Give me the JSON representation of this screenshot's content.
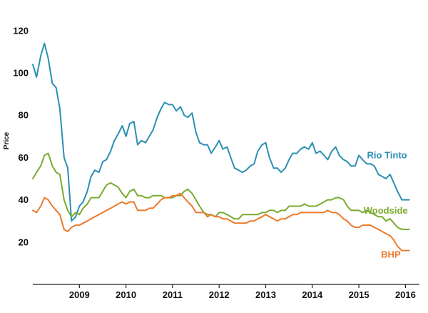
{
  "chart_data": {
    "type": "line",
    "ylabel": "Price",
    "xlabel": "",
    "ylim": [
      0,
      125
    ],
    "xlim": [
      2008.0,
      2016.3
    ],
    "yticks": [
      20,
      40,
      60,
      80,
      100,
      120
    ],
    "xticks": [
      {
        "value": 2009,
        "label": "2009"
      },
      {
        "value": 2010,
        "label": "2010"
      },
      {
        "value": 2011,
        "label": "2011"
      },
      {
        "value": 2012,
        "label": "2012"
      },
      {
        "value": 2013,
        "label": "2013"
      },
      {
        "value": 2014,
        "label": "2014"
      },
      {
        "value": 2015,
        "label": "2015"
      },
      {
        "value": 2016,
        "label": "2016"
      }
    ],
    "grid": false,
    "legend": "inline labels at right",
    "series": [
      {
        "name": "Rio Tinto",
        "color": "#2b8fb3",
        "x": [
          2008.0,
          2008.08,
          2008.17,
          2008.25,
          2008.33,
          2008.42,
          2008.5,
          2008.58,
          2008.67,
          2008.75,
          2008.83,
          2008.92,
          2009.0,
          2009.08,
          2009.17,
          2009.25,
          2009.33,
          2009.42,
          2009.5,
          2009.58,
          2009.67,
          2009.75,
          2009.83,
          2009.92,
          2010.0,
          2010.08,
          2010.17,
          2010.25,
          2010.33,
          2010.42,
          2010.5,
          2010.58,
          2010.67,
          2010.75,
          2010.83,
          2010.92,
          2011.0,
          2011.08,
          2011.17,
          2011.25,
          2011.33,
          2011.42,
          2011.5,
          2011.58,
          2011.67,
          2011.75,
          2011.83,
          2011.92,
          2012.0,
          2012.08,
          2012.17,
          2012.25,
          2012.33,
          2012.42,
          2012.5,
          2012.58,
          2012.67,
          2012.75,
          2012.83,
          2012.92,
          2013.0,
          2013.08,
          2013.17,
          2013.25,
          2013.33,
          2013.42,
          2013.5,
          2013.58,
          2013.67,
          2013.75,
          2013.83,
          2013.92,
          2014.0,
          2014.08,
          2014.17,
          2014.25,
          2014.33,
          2014.42,
          2014.5,
          2014.58,
          2014.67,
          2014.75,
          2014.83,
          2014.92,
          2015.0,
          2015.08,
          2015.17,
          2015.25,
          2015.33,
          2015.42,
          2015.5,
          2015.58,
          2015.67,
          2015.75,
          2015.83,
          2015.92,
          2016.0,
          2016.08
        ],
        "values": [
          104,
          98,
          108,
          114,
          107,
          95,
          93,
          83,
          60,
          55,
          30,
          32,
          37,
          39,
          44,
          51,
          54,
          53,
          58,
          59,
          63,
          68,
          71,
          75,
          70,
          76,
          77,
          66,
          68,
          67,
          70,
          73,
          79,
          83,
          86,
          85,
          85,
          82,
          84,
          80,
          79,
          81,
          72,
          67,
          66,
          66,
          62,
          65,
          68,
          64,
          65,
          60,
          55,
          54,
          53,
          54,
          56,
          57,
          63,
          66,
          67,
          60,
          55,
          55,
          53,
          55,
          59,
          62,
          62,
          64,
          65,
          64,
          67,
          62,
          63,
          61,
          59,
          63,
          65,
          61,
          59,
          58,
          56,
          56,
          61,
          59,
          57,
          57,
          56,
          52,
          51,
          50,
          52,
          48,
          44,
          40,
          40,
          40
        ]
      },
      {
        "name": "Woodside",
        "color": "#7aab2f",
        "x": [
          2008.0,
          2008.08,
          2008.17,
          2008.25,
          2008.33,
          2008.42,
          2008.5,
          2008.58,
          2008.67,
          2008.75,
          2008.83,
          2008.92,
          2009.0,
          2009.08,
          2009.17,
          2009.25,
          2009.33,
          2009.42,
          2009.5,
          2009.58,
          2009.67,
          2009.75,
          2009.83,
          2009.92,
          2010.0,
          2010.08,
          2010.17,
          2010.25,
          2010.33,
          2010.42,
          2010.5,
          2010.58,
          2010.67,
          2010.75,
          2010.83,
          2010.92,
          2011.0,
          2011.08,
          2011.17,
          2011.25,
          2011.33,
          2011.42,
          2011.5,
          2011.58,
          2011.67,
          2011.75,
          2011.83,
          2011.92,
          2012.0,
          2012.08,
          2012.17,
          2012.25,
          2012.33,
          2012.42,
          2012.5,
          2012.58,
          2012.67,
          2012.75,
          2012.83,
          2012.92,
          2013.0,
          2013.08,
          2013.17,
          2013.25,
          2013.33,
          2013.42,
          2013.5,
          2013.58,
          2013.67,
          2013.75,
          2013.83,
          2013.92,
          2014.0,
          2014.08,
          2014.17,
          2014.25,
          2014.33,
          2014.42,
          2014.5,
          2014.58,
          2014.67,
          2014.75,
          2014.83,
          2014.92,
          2015.0,
          2015.08,
          2015.17,
          2015.25,
          2015.33,
          2015.42,
          2015.5,
          2015.58,
          2015.67,
          2015.75,
          2015.83,
          2015.92,
          2016.0,
          2016.08
        ],
        "values": [
          50,
          53,
          56,
          61,
          62,
          56,
          53,
          52,
          40,
          35,
          32,
          34,
          33,
          36,
          38,
          41,
          41,
          41,
          44,
          47,
          48,
          47,
          46,
          43,
          41,
          44,
          45,
          42,
          42,
          41,
          41,
          42,
          42,
          42,
          41,
          41,
          41,
          42,
          42,
          44,
          45,
          43,
          40,
          37,
          34,
          33,
          33,
          32,
          34,
          34,
          33,
          32,
          31,
          31,
          33,
          33,
          33,
          33,
          33,
          34,
          34,
          35,
          35,
          34,
          35,
          35,
          37,
          37,
          37,
          37,
          38,
          37,
          37,
          37,
          38,
          39,
          40,
          40,
          41,
          41,
          40,
          37,
          35,
          35,
          35,
          34,
          35,
          34,
          33,
          32,
          32,
          30,
          31,
          29,
          27,
          26,
          26,
          26
        ]
      },
      {
        "name": "BHP",
        "color": "#ea7a2c",
        "x": [
          2008.0,
          2008.08,
          2008.17,
          2008.25,
          2008.33,
          2008.42,
          2008.5,
          2008.58,
          2008.67,
          2008.75,
          2008.83,
          2008.92,
          2009.0,
          2009.08,
          2009.17,
          2009.25,
          2009.33,
          2009.42,
          2009.5,
          2009.58,
          2009.67,
          2009.75,
          2009.83,
          2009.92,
          2010.0,
          2010.08,
          2010.17,
          2010.25,
          2010.33,
          2010.42,
          2010.5,
          2010.58,
          2010.67,
          2010.75,
          2010.83,
          2010.92,
          2011.0,
          2011.08,
          2011.17,
          2011.25,
          2011.33,
          2011.42,
          2011.5,
          2011.58,
          2011.67,
          2011.75,
          2011.83,
          2011.92,
          2012.0,
          2012.08,
          2012.17,
          2012.25,
          2012.33,
          2012.42,
          2012.5,
          2012.58,
          2012.67,
          2012.75,
          2012.83,
          2012.92,
          2013.0,
          2013.08,
          2013.17,
          2013.25,
          2013.33,
          2013.42,
          2013.5,
          2013.58,
          2013.67,
          2013.75,
          2013.83,
          2013.92,
          2014.0,
          2014.08,
          2014.17,
          2014.25,
          2014.33,
          2014.42,
          2014.5,
          2014.58,
          2014.67,
          2014.75,
          2014.83,
          2014.92,
          2015.0,
          2015.08,
          2015.17,
          2015.25,
          2015.33,
          2015.42,
          2015.5,
          2015.58,
          2015.67,
          2015.75,
          2015.83,
          2015.92,
          2016.0,
          2016.08
        ],
        "values": [
          35,
          34,
          37,
          41,
          40,
          37,
          35,
          33,
          26,
          25,
          27,
          28,
          28,
          29,
          30,
          31,
          32,
          33,
          34,
          35,
          36,
          37,
          38,
          39,
          38,
          39,
          39,
          35,
          35,
          35,
          36,
          36,
          38,
          40,
          41,
          41,
          42,
          42,
          43,
          41,
          39,
          37,
          34,
          34,
          34,
          32,
          33,
          32,
          32,
          31,
          31,
          30,
          29,
          29,
          29,
          29,
          30,
          30,
          31,
          32,
          33,
          32,
          31,
          30,
          31,
          31,
          32,
          33,
          33,
          34,
          34,
          34,
          34,
          34,
          34,
          34,
          35,
          34,
          34,
          33,
          31,
          30,
          28,
          27,
          27,
          28,
          28,
          28,
          27,
          26,
          25,
          24,
          23,
          21,
          18,
          16,
          16,
          16
        ]
      }
    ]
  }
}
